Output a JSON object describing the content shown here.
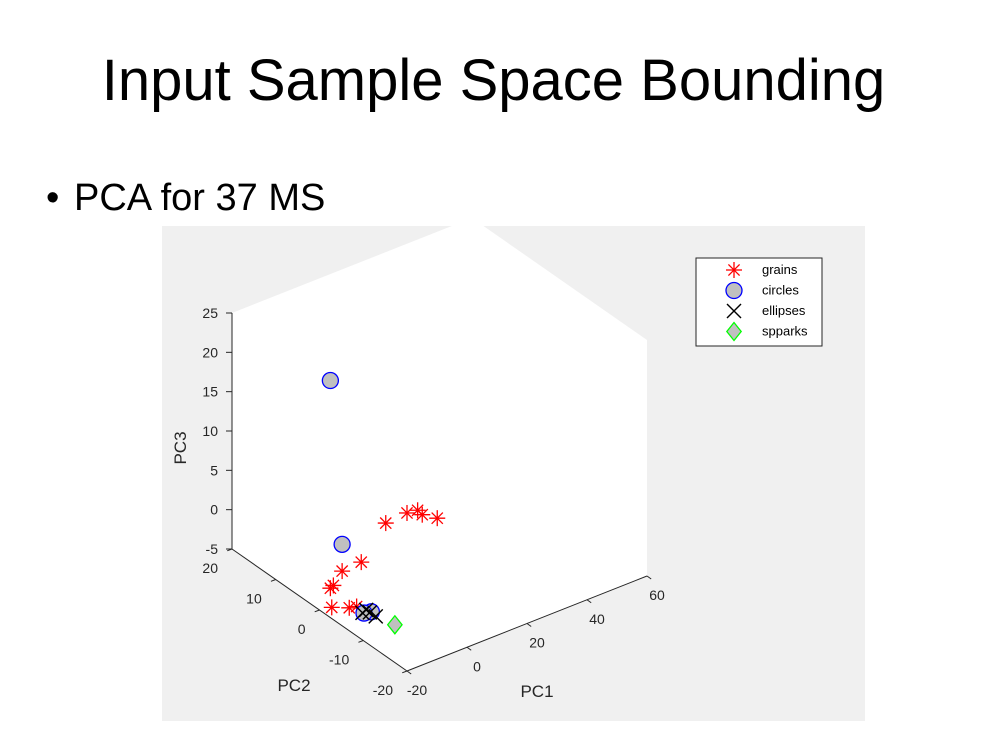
{
  "slide": {
    "title": "Input Sample Space Bounding",
    "bullet_symbol": "•",
    "bullet_text": "PCA for 37 MS"
  },
  "colors": {
    "figure_background": "#f0f0f0",
    "axes_background": "#ffffff",
    "grains": "#ff0000",
    "circles_fill": "#c0c0c0",
    "circles_edge": "#0000ff",
    "ellipses": "#000000",
    "spparks_fill": "#c0c0c0",
    "spparks_edge": "#00ff00"
  },
  "chart_data": {
    "type": "scatter",
    "projection": "3d",
    "title": "",
    "xlabel": "PC1",
    "ylabel": "PC2",
    "zlabel": "PC3",
    "xlim": [
      -20,
      60
    ],
    "ylim": [
      -20,
      20
    ],
    "zlim": [
      -5,
      25
    ],
    "xticks": [
      -20,
      0,
      20,
      40,
      60
    ],
    "yticks": [
      -20,
      -10,
      0,
      10,
      20
    ],
    "zticks": [
      -5,
      0,
      5,
      10,
      15,
      20,
      25
    ],
    "grid": false,
    "legend": "top-right",
    "series": [
      {
        "name": "grains",
        "marker": "asterisk",
        "points": [
          [
            -9,
            -2,
            0.2
          ],
          [
            -11,
            1,
            -1.8
          ],
          [
            -11,
            3,
            -4.4
          ],
          [
            -12,
            3,
            -4.6
          ],
          [
            -13,
            2,
            -6.5
          ],
          [
            5,
            2,
            1.5
          ],
          [
            15,
            4,
            0.5
          ],
          [
            20,
            5,
            -0.3
          ],
          [
            23,
            6,
            -1.7
          ],
          [
            28,
            6,
            -2.9
          ],
          [
            -13,
            -2,
            -5.0
          ],
          [
            -12,
            -3,
            -4.6
          ]
        ]
      },
      {
        "name": "circles",
        "marker": "circle",
        "points": [
          [
            -12,
            3,
            21.8
          ],
          [
            -11,
            1,
            1.6
          ],
          [
            -10,
            -5,
            -4.8
          ],
          [
            -11,
            -4,
            -5.2
          ]
        ]
      },
      {
        "name": "ellipses",
        "marker": "x",
        "points": [
          [
            -10.5,
            -5,
            -4.8
          ],
          [
            -11,
            -4.5,
            -4.6
          ],
          [
            -10,
            -6,
            -5.0
          ],
          [
            -11.5,
            -4,
            -5.1
          ]
        ]
      },
      {
        "name": "spparks",
        "marker": "diamond",
        "points": [
          [
            -8,
            -9,
            -5.2
          ]
        ]
      }
    ]
  }
}
